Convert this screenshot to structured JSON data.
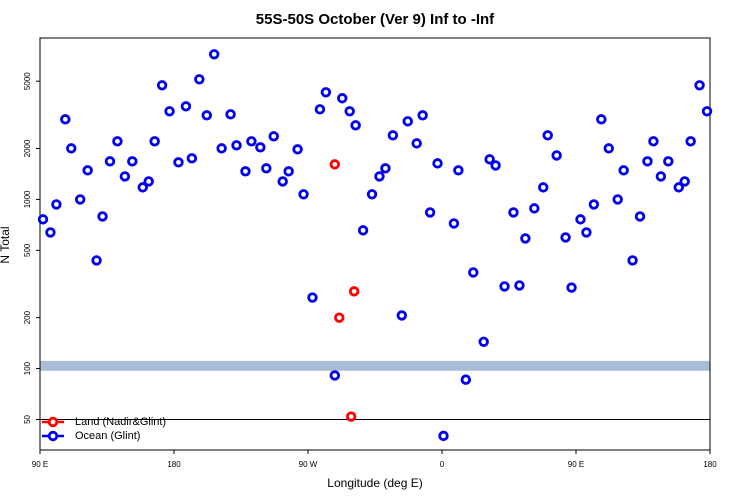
{
  "chart_data": {
    "type": "scatter",
    "title": "55S-50S October (Ver 9)   Inf to -Inf",
    "x_label": "Longitude (deg E)",
    "y_label": "N Total",
    "log_y": true,
    "xlim": [
      90,
      540
    ],
    "ylim": [
      33,
      9000
    ],
    "xticks": [
      {
        "value": 90,
        "label": "90 E"
      },
      180,
      {
        "value": 270,
        "label": "90 W"
      },
      {
        "value": 360,
        "label": "0"
      },
      {
        "value": 450,
        "label": "90 E"
      },
      {
        "value": 540,
        "label": "180"
      }
    ],
    "yticks": [
      50,
      100,
      200,
      500,
      1000,
      2000,
      5000
    ],
    "hline": 50,
    "band": {
      "range": [
        97,
        111
      ],
      "color": "#a8bcd8"
    },
    "legend": "bottom-left",
    "series": [
      {
        "name": "Land (Nadir&Glint)",
        "color": "#ff0000",
        "x": [
          288,
          291,
          301,
          299
        ],
        "values": [
          1611,
          200,
          286,
          52
        ]
      },
      {
        "name": "Ocean (Glint)",
        "color": "#0000ee",
        "x": [
          92,
          97,
          101,
          107,
          111,
          117,
          122,
          128,
          132,
          137,
          142,
          147,
          152,
          159,
          163,
          167,
          172,
          177,
          183,
          188,
          192,
          197,
          202,
          207,
          212,
          218,
          222,
          228,
          232,
          238,
          242,
          247,
          253,
          257,
          263,
          267,
          273,
          278,
          282,
          288,
          293,
          298,
          302,
          307,
          313,
          318,
          322,
          327,
          333,
          337,
          343,
          347,
          352,
          357,
          361,
          368,
          371,
          376,
          381,
          388,
          392,
          396,
          402,
          408,
          412,
          416,
          422,
          428,
          431,
          437,
          443,
          447,
          453,
          457,
          462,
          467,
          472,
          478,
          482,
          488,
          493,
          498,
          502,
          507,
          512,
          519,
          523,
          527,
          533,
          538
        ],
        "values": [
          762,
          638,
          934,
          2974,
          2003,
          1000,
          1485,
          436,
          793,
          1679,
          2205,
          1368,
          1679,
          1178,
          1278,
          2205,
          4728,
          3319,
          1656,
          3550,
          1749,
          5129,
          3140,
          7211,
          2003,
          3184,
          2088,
          1465,
          2205,
          2031,
          1526,
          2359,
          1278,
          1465,
          1977,
          1072,
          263,
          3409,
          4297,
          91,
          3963,
          3319,
          2741,
          656,
          1072,
          1368,
          1526,
          2392,
          206,
          2895,
          2144,
          3140,
          838,
          1633,
          40,
          721,
          1485,
          86,
          370,
          144,
          1725,
          1589,
          306,
          838,
          310,
          588,
          885,
          1178,
          2392,
          1820,
          596,
          301,
          762,
          638,
          934,
          2974,
          2003,
          1000,
          1485,
          436,
          793,
          1679,
          2205,
          1368,
          1679,
          1178,
          1278,
          2205,
          4728,
          3319
        ]
      }
    ]
  }
}
